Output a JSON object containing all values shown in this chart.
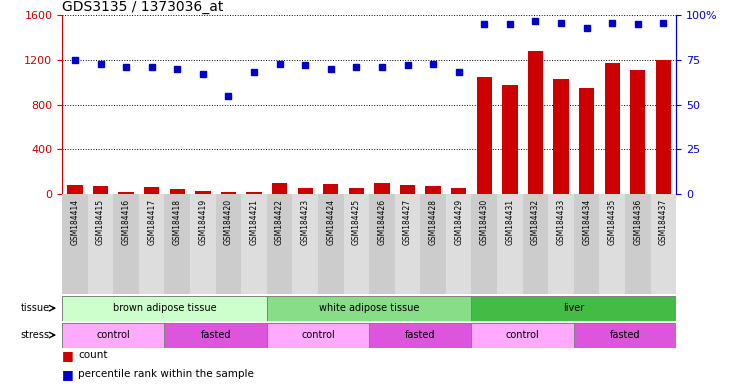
{
  "title": "GDS3135 / 1373036_at",
  "samples": [
    "GSM184414",
    "GSM184415",
    "GSM184416",
    "GSM184417",
    "GSM184418",
    "GSM184419",
    "GSM184420",
    "GSM184421",
    "GSM184422",
    "GSM184423",
    "GSM184424",
    "GSM184425",
    "GSM184426",
    "GSM184427",
    "GSM184428",
    "GSM184429",
    "GSM184430",
    "GSM184431",
    "GSM184432",
    "GSM184433",
    "GSM184434",
    "GSM184435",
    "GSM184436",
    "GSM184437"
  ],
  "count": [
    80,
    70,
    20,
    60,
    40,
    25,
    20,
    20,
    100,
    50,
    90,
    50,
    100,
    80,
    70,
    55,
    1050,
    980,
    1280,
    1030,
    950,
    1170,
    1110,
    1200
  ],
  "percentile": [
    75,
    73,
    71,
    71,
    70,
    67,
    55,
    68,
    73,
    72,
    70,
    71,
    71,
    72,
    73,
    68,
    95,
    95,
    97,
    96,
    93,
    96,
    95,
    96
  ],
  "ylim_left": [
    0,
    1600
  ],
  "ylim_right": [
    0,
    100
  ],
  "yticks_left": [
    0,
    400,
    800,
    1200,
    1600
  ],
  "yticks_right": [
    0,
    25,
    50,
    75,
    100
  ],
  "bar_color": "#cc0000",
  "dot_color": "#0000cc",
  "tissue_groups": [
    {
      "label": "brown adipose tissue",
      "start": 0,
      "end": 8,
      "color": "#ccffcc"
    },
    {
      "label": "white adipose tissue",
      "start": 8,
      "end": 16,
      "color": "#88dd88"
    },
    {
      "label": "liver",
      "start": 16,
      "end": 24,
      "color": "#44bb44"
    }
  ],
  "stress_groups": [
    {
      "label": "control",
      "start": 0,
      "end": 4,
      "color": "#ffaaff"
    },
    {
      "label": "fasted",
      "start": 4,
      "end": 8,
      "color": "#dd55dd"
    },
    {
      "label": "control",
      "start": 8,
      "end": 12,
      "color": "#ffaaff"
    },
    {
      "label": "fasted",
      "start": 12,
      "end": 16,
      "color": "#dd55dd"
    },
    {
      "label": "control",
      "start": 16,
      "end": 20,
      "color": "#ffaaff"
    },
    {
      "label": "fasted",
      "start": 20,
      "end": 24,
      "color": "#dd55dd"
    }
  ],
  "title_fontsize": 10,
  "tick_fontsize": 8,
  "sample_fontsize": 5.5,
  "label_fontsize": 7,
  "legend_fontsize": 7.5
}
